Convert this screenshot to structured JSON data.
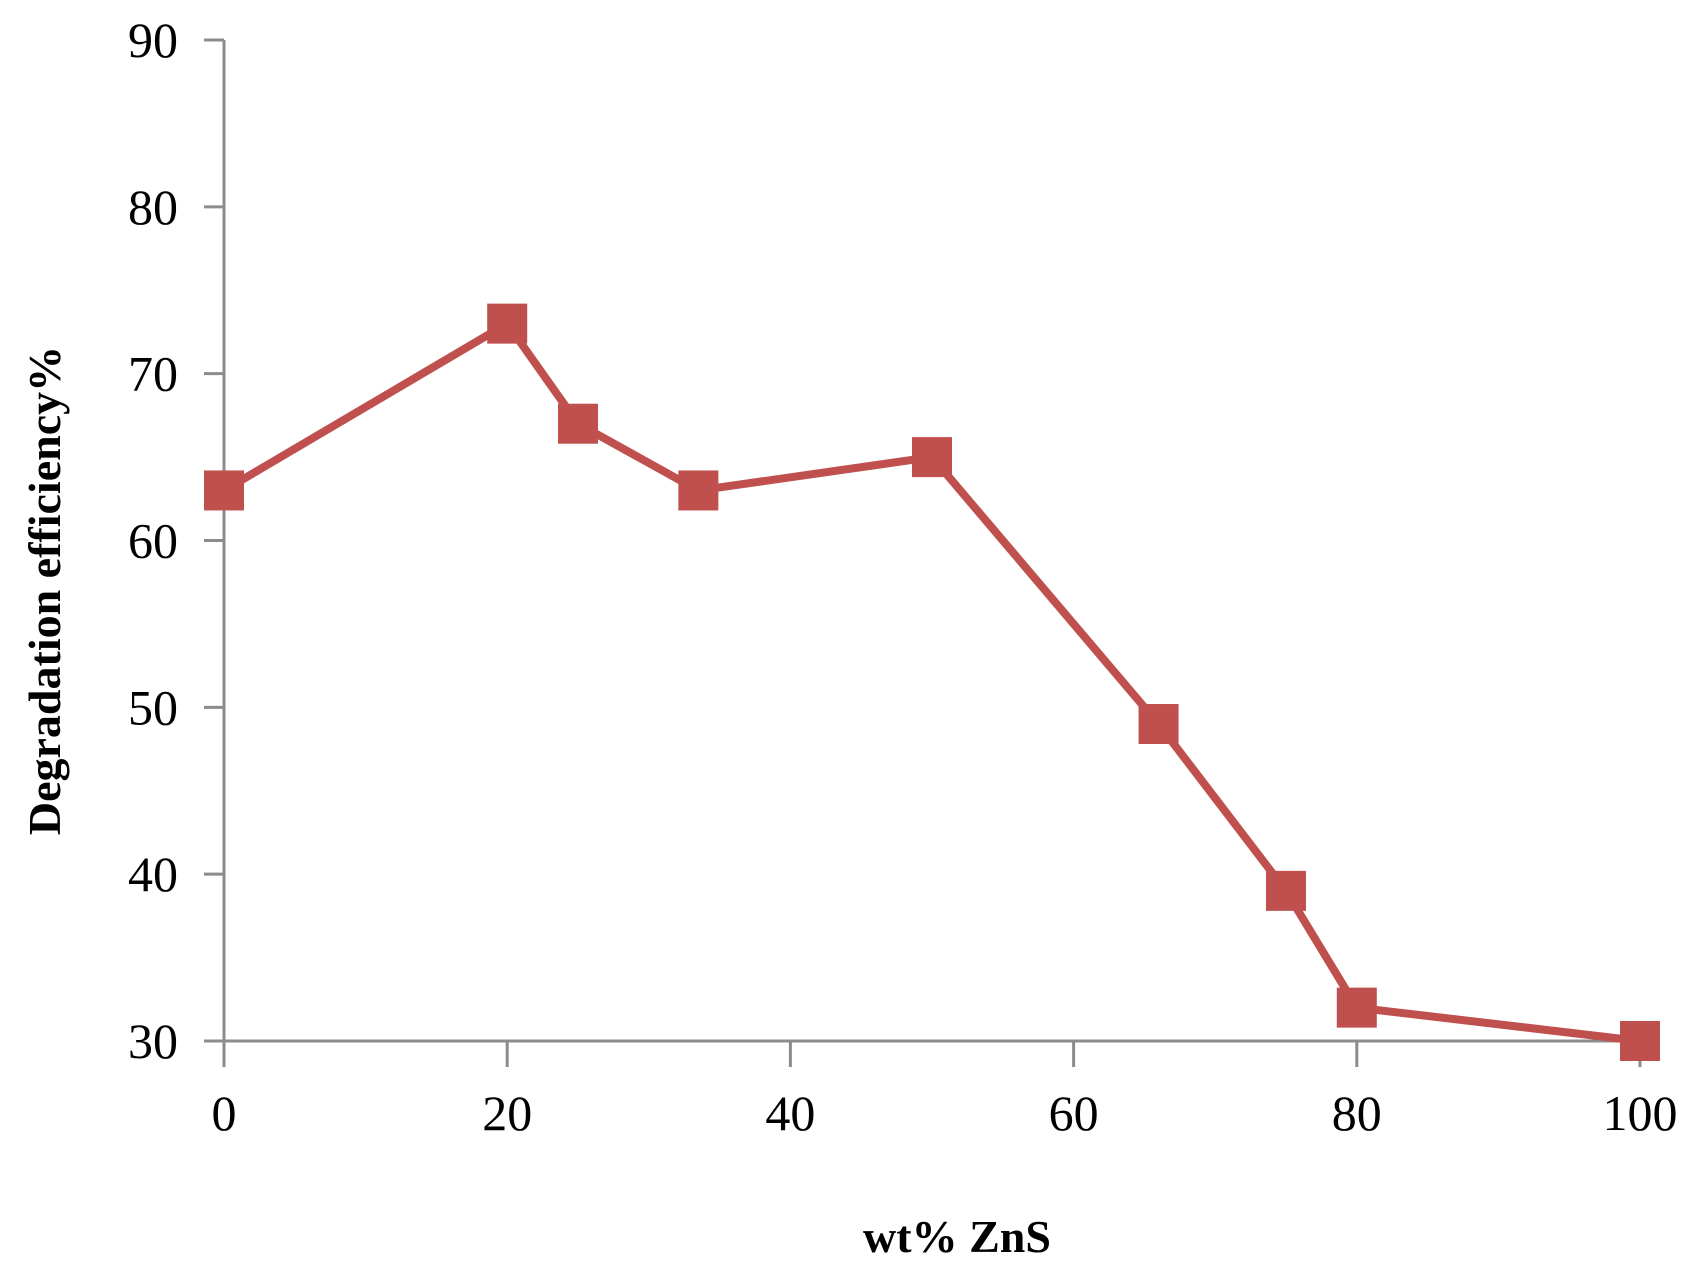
{
  "chart_data": {
    "type": "line",
    "xlabel": "wt% ZnS",
    "ylabel": "Degradation efficiency%",
    "xlim": [
      0,
      100
    ],
    "ylim": [
      30,
      90
    ],
    "x_ticks": [
      0,
      20,
      40,
      60,
      80,
      100
    ],
    "y_ticks": [
      30,
      40,
      50,
      60,
      70,
      80,
      90
    ],
    "grid": false,
    "legend": "none",
    "series": [
      {
        "marker": "square",
        "color": "#c0504d",
        "x": [
          0,
          20,
          25,
          33.5,
          50,
          66,
          75,
          80,
          100
        ],
        "y": [
          63,
          73,
          67,
          63,
          65,
          49,
          39,
          32,
          30
        ]
      }
    ]
  }
}
